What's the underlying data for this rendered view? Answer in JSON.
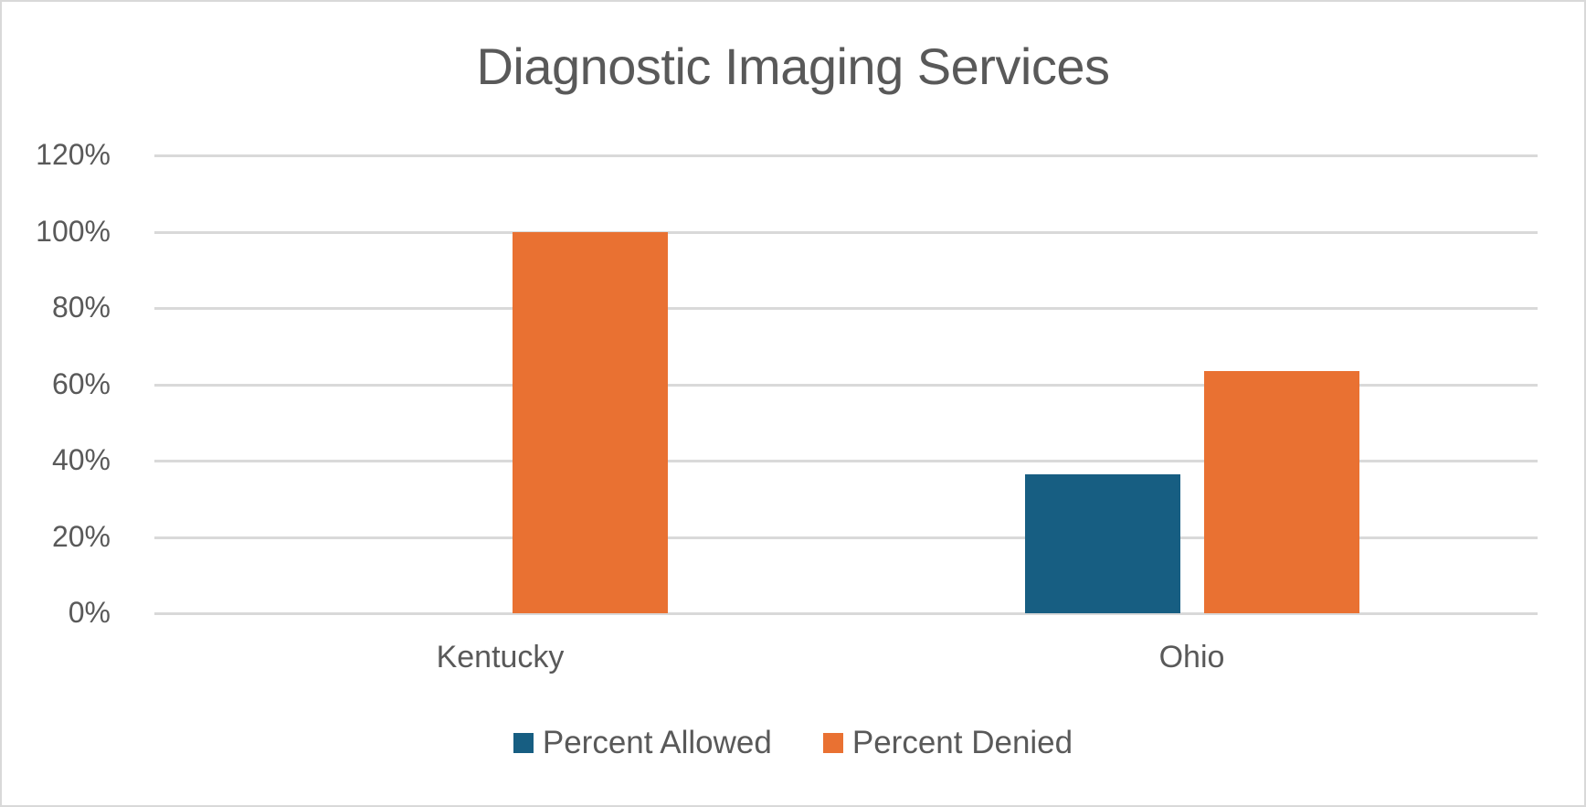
{
  "chart_data": {
    "type": "bar",
    "title": "Diagnostic Imaging Services",
    "categories": [
      "Kentucky",
      "Ohio"
    ],
    "series": [
      {
        "name": "Percent Allowed",
        "color": "#175e82",
        "values": [
          0,
          36.5
        ]
      },
      {
        "name": "Percent Denied",
        "color": "#e97132",
        "values": [
          100,
          63.5
        ]
      }
    ],
    "xlabel": "",
    "ylabel": "",
    "ylim": [
      0,
      120
    ],
    "yticks": [
      "0%",
      "20%",
      "40%",
      "60%",
      "80%",
      "100%",
      "120%"
    ],
    "grid": true,
    "legend_position": "bottom"
  },
  "colors": {
    "allowed": "#175e82",
    "denied": "#e97132",
    "gridline": "#d9d9d9",
    "text": "#595959",
    "border": "#d9d9d9"
  }
}
